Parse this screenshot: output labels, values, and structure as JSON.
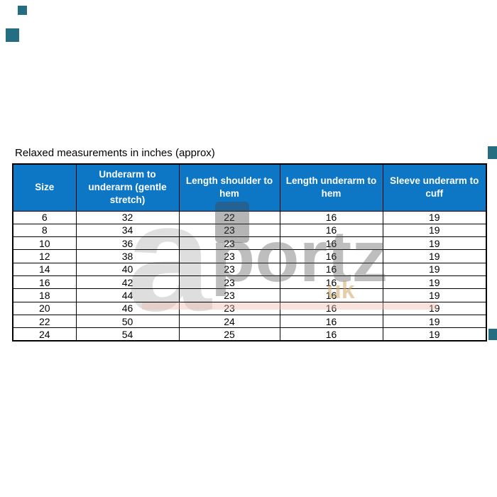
{
  "title": "Relaxed measurements in inches (approx)",
  "chart_data": {
    "type": "table",
    "title": "Relaxed measurements in inches (approx)",
    "columns": [
      "Size",
      "Underarm to underarm (gentle stretch)",
      "Length shoulder to hem",
      "Length underarm to hem",
      "Sleeve underarm to cuff"
    ],
    "rows": [
      [
        6,
        32,
        22,
        16,
        19
      ],
      [
        8,
        34,
        23,
        16,
        19
      ],
      [
        10,
        36,
        23,
        16,
        19
      ],
      [
        12,
        38,
        23,
        16,
        19
      ],
      [
        14,
        40,
        23,
        16,
        19
      ],
      [
        16,
        42,
        23,
        16,
        19
      ],
      [
        18,
        44,
        23,
        16,
        19
      ],
      [
        20,
        46,
        23,
        16,
        19
      ],
      [
        22,
        50,
        24,
        16,
        19
      ],
      [
        24,
        54,
        25,
        16,
        19
      ]
    ]
  },
  "watermark": {
    "letter_a": "a",
    "word": "portz",
    "suffix": "uk"
  },
  "colors": {
    "header_bg": "#0d76c5",
    "header_text": "#ffffff",
    "border": "#000000",
    "decor_square": "#256d80",
    "watermark_gray": "#8c8c8c",
    "watermark_tan": "#cda864",
    "watermark_pink": "#ebbcac"
  }
}
